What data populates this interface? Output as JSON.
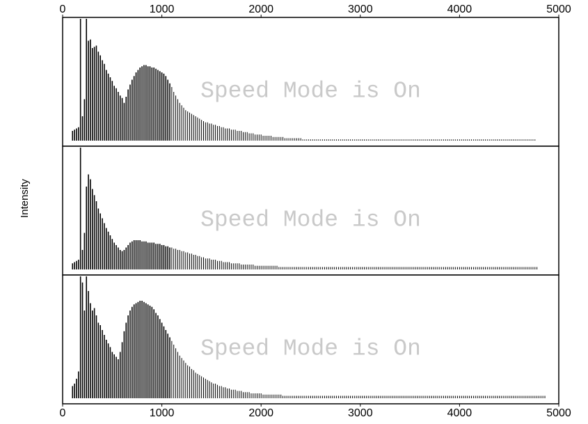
{
  "chart_data": {
    "type": "bar",
    "ylabel": "Intensity",
    "xlim": [
      0,
      5000
    ],
    "x_ticks": [
      0,
      1000,
      2000,
      3000,
      4000,
      5000
    ],
    "x_tick_labels": [
      "0",
      "1000",
      "2000",
      "3000",
      "4000",
      "5000"
    ],
    "watermark": "Speed Mode is On",
    "panels": [
      {
        "name": "",
        "x_start": 100,
        "x_step": 20,
        "values": [
          0.08,
          0.09,
          0.1,
          0.11,
          1.0,
          0.2,
          0.34,
          1.0,
          0.82,
          0.83,
          0.76,
          0.77,
          0.78,
          0.73,
          0.7,
          0.66,
          0.63,
          0.58,
          0.55,
          0.52,
          0.49,
          0.45,
          0.43,
          0.4,
          0.37,
          0.35,
          0.31,
          0.36,
          0.42,
          0.46,
          0.5,
          0.53,
          0.56,
          0.58,
          0.6,
          0.61,
          0.62,
          0.62,
          0.61,
          0.61,
          0.6,
          0.6,
          0.59,
          0.58,
          0.57,
          0.56,
          0.55,
          0.53,
          0.5,
          0.47,
          0.44,
          0.4,
          0.37,
          0.34,
          0.31,
          0.29,
          0.27,
          0.25,
          0.24,
          0.23,
          0.22,
          0.21,
          0.2,
          0.19,
          0.18,
          0.17,
          0.16,
          0.15,
          0.15,
          0.14,
          0.14,
          0.13,
          0.13,
          0.12,
          0.12,
          0.11,
          0.11,
          0.1,
          0.1,
          0.1,
          0.09,
          0.09,
          0.09,
          0.08,
          0.08,
          0.08,
          0.07,
          0.07,
          0.07,
          0.06,
          0.06,
          0.06,
          0.05,
          0.05,
          0.05,
          0.05,
          0.04,
          0.04,
          0.04,
          0.04,
          0.04,
          0.03,
          0.03,
          0.03,
          0.03,
          0.03,
          0.03,
          0.02,
          0.02,
          0.02,
          0.02,
          0.02,
          0.02,
          0.02,
          0.02,
          0.02,
          0.01,
          0.01,
          0.01,
          0.01,
          0.01,
          0.01,
          0.01,
          0.01,
          0.01,
          0.01,
          0.01,
          0.01,
          0.01,
          0.01,
          0.01,
          0.01,
          0.01,
          0.01,
          0.01,
          0.01,
          0.01,
          0.01,
          0.01,
          0.01,
          0.01,
          0.01,
          0.01,
          0.01,
          0.01,
          0.01,
          0.01,
          0.01,
          0.01,
          0.01,
          0.01,
          0.01,
          0.01,
          0.01,
          0.01,
          0.01,
          0.01,
          0.01,
          0.01,
          0.01,
          0.01,
          0.01,
          0.01,
          0.01,
          0.01,
          0.01,
          0.01,
          0.01,
          0.01,
          0.01,
          0.01,
          0.01,
          0.01,
          0.01,
          0.01,
          0.01,
          0.01,
          0.01,
          0.01,
          0.01,
          0.01,
          0.01,
          0.01,
          0.01,
          0.01,
          0.01,
          0.01,
          0.01,
          0.01,
          0.01,
          0.01,
          0.01,
          0.01,
          0.01,
          0.01,
          0.01,
          0.01,
          0.01,
          0.01,
          0.01,
          0.01,
          0.01,
          0.01,
          0.01,
          0.01,
          0.01,
          0.01,
          0.01,
          0.01,
          0.01,
          0.01,
          0.01,
          0.01,
          0.01,
          0.01,
          0.01,
          0.01,
          0.01,
          0.01,
          0.01,
          0.01,
          0.01,
          0.01,
          0.01,
          0.01,
          0.01,
          0.01,
          0.01,
          0.01,
          0.01,
          0.01,
          0.01,
          0.01,
          0.01
        ]
      },
      {
        "name": "",
        "x_start": 100,
        "x_step": 20,
        "values": [
          0.05,
          0.06,
          0.07,
          0.08,
          1.0,
          0.16,
          0.3,
          0.68,
          0.78,
          0.74,
          0.66,
          0.61,
          0.56,
          0.5,
          0.46,
          0.42,
          0.38,
          0.34,
          0.31,
          0.28,
          0.25,
          0.22,
          0.2,
          0.18,
          0.16,
          0.15,
          0.16,
          0.18,
          0.2,
          0.22,
          0.23,
          0.24,
          0.24,
          0.24,
          0.24,
          0.23,
          0.23,
          0.23,
          0.22,
          0.22,
          0.22,
          0.22,
          0.21,
          0.21,
          0.21,
          0.2,
          0.2,
          0.19,
          0.19,
          0.18,
          0.18,
          0.17,
          0.17,
          0.16,
          0.16,
          0.15,
          0.15,
          0.14,
          0.14,
          0.13,
          0.13,
          0.12,
          0.12,
          0.11,
          0.11,
          0.1,
          0.1,
          0.09,
          0.09,
          0.09,
          0.08,
          0.08,
          0.08,
          0.07,
          0.07,
          0.07,
          0.06,
          0.06,
          0.06,
          0.06,
          0.05,
          0.05,
          0.05,
          0.05,
          0.05,
          0.04,
          0.04,
          0.04,
          0.04,
          0.04,
          0.04,
          0.04,
          0.03,
          0.03,
          0.03,
          0.03,
          0.03,
          0.03,
          0.03,
          0.03,
          0.03,
          0.03,
          0.03,
          0.03,
          0.02,
          0.02,
          0.02,
          0.02,
          0.02,
          0.02,
          0.02,
          0.02,
          0.02,
          0.02,
          0.02,
          0.02,
          0.02,
          0.02,
          0.02,
          0.02,
          0.02,
          0.02,
          0.02,
          0.02,
          0.02,
          0.02,
          0.02,
          0.02,
          0.02,
          0.02,
          0.02,
          0.02,
          0.02,
          0.02,
          0.02,
          0.02,
          0.02,
          0.02,
          0.02,
          0.02,
          0.02,
          0.02,
          0.02,
          0.02,
          0.02,
          0.02,
          0.02,
          0.02,
          0.02,
          0.02,
          0.02,
          0.02,
          0.02,
          0.02,
          0.02,
          0.02,
          0.02,
          0.02,
          0.02,
          0.02,
          0.02,
          0.02,
          0.02,
          0.02,
          0.02,
          0.02,
          0.02,
          0.02,
          0.02,
          0.02,
          0.02,
          0.02,
          0.02,
          0.02,
          0.02,
          0.02,
          0.02,
          0.02,
          0.02,
          0.02,
          0.02,
          0.02,
          0.02,
          0.02,
          0.02,
          0.02,
          0.02,
          0.02,
          0.02,
          0.02,
          0.02,
          0.02,
          0.02,
          0.02,
          0.02,
          0.02,
          0.02,
          0.02,
          0.02,
          0.02,
          0.02,
          0.02,
          0.02,
          0.02,
          0.02,
          0.02,
          0.02,
          0.02,
          0.02,
          0.02,
          0.02,
          0.02,
          0.02,
          0.02,
          0.02,
          0.02,
          0.02,
          0.02,
          0.02,
          0.02,
          0.02,
          0.02,
          0.02,
          0.02,
          0.02,
          0.02,
          0.02,
          0.02,
          0.02,
          0.02,
          0.02,
          0.02,
          0.02,
          0.02,
          0.02
        ]
      },
      {
        "name": "",
        "x_start": 100,
        "x_step": 20,
        "values": [
          0.1,
          0.12,
          0.16,
          0.22,
          1.0,
          0.95,
          0.72,
          1.0,
          0.88,
          0.78,
          0.72,
          0.74,
          0.68,
          0.62,
          0.6,
          0.56,
          0.52,
          0.48,
          0.45,
          0.42,
          0.38,
          0.36,
          0.34,
          0.32,
          0.38,
          0.46,
          0.55,
          0.62,
          0.68,
          0.72,
          0.75,
          0.77,
          0.78,
          0.79,
          0.8,
          0.8,
          0.79,
          0.78,
          0.77,
          0.76,
          0.75,
          0.73,
          0.7,
          0.68,
          0.65,
          0.62,
          0.59,
          0.56,
          0.53,
          0.5,
          0.47,
          0.44,
          0.41,
          0.38,
          0.35,
          0.33,
          0.31,
          0.29,
          0.27,
          0.26,
          0.24,
          0.23,
          0.21,
          0.2,
          0.19,
          0.18,
          0.17,
          0.16,
          0.15,
          0.14,
          0.13,
          0.12,
          0.12,
          0.11,
          0.1,
          0.1,
          0.09,
          0.09,
          0.08,
          0.08,
          0.07,
          0.07,
          0.07,
          0.06,
          0.06,
          0.06,
          0.05,
          0.05,
          0.05,
          0.05,
          0.04,
          0.04,
          0.04,
          0.04,
          0.04,
          0.04,
          0.03,
          0.03,
          0.03,
          0.03,
          0.03,
          0.03,
          0.03,
          0.03,
          0.03,
          0.03,
          0.02,
          0.02,
          0.02,
          0.02,
          0.02,
          0.02,
          0.02,
          0.02,
          0.02,
          0.02,
          0.02,
          0.02,
          0.02,
          0.02,
          0.02,
          0.02,
          0.02,
          0.02,
          0.02,
          0.02,
          0.02,
          0.02,
          0.02,
          0.02,
          0.02,
          0.02,
          0.02,
          0.02,
          0.02,
          0.02,
          0.02,
          0.02,
          0.02,
          0.02,
          0.02,
          0.02,
          0.02,
          0.02,
          0.02,
          0.02,
          0.02,
          0.02,
          0.02,
          0.02,
          0.02,
          0.02,
          0.02,
          0.02,
          0.02,
          0.02,
          0.02,
          0.02,
          0.02,
          0.02,
          0.02,
          0.02,
          0.02,
          0.02,
          0.02,
          0.02,
          0.02,
          0.02,
          0.02,
          0.02,
          0.02,
          0.02,
          0.02,
          0.02,
          0.02,
          0.02,
          0.02,
          0.02,
          0.02,
          0.02,
          0.02,
          0.02,
          0.02,
          0.02,
          0.02,
          0.02,
          0.02,
          0.02,
          0.02,
          0.02,
          0.02,
          0.02,
          0.02,
          0.02,
          0.02,
          0.02,
          0.02,
          0.02,
          0.02,
          0.02,
          0.02,
          0.02,
          0.02,
          0.02,
          0.02,
          0.02,
          0.02,
          0.02,
          0.02,
          0.02,
          0.02,
          0.02,
          0.02,
          0.02,
          0.02,
          0.02,
          0.02,
          0.02,
          0.02,
          0.02,
          0.02,
          0.02,
          0.02,
          0.02,
          0.02,
          0.02,
          0.02,
          0.02,
          0.02,
          0.02,
          0.02,
          0.02,
          0.02,
          0.02,
          0.02,
          0.02,
          0.02,
          0.02,
          0.02
        ]
      }
    ]
  }
}
